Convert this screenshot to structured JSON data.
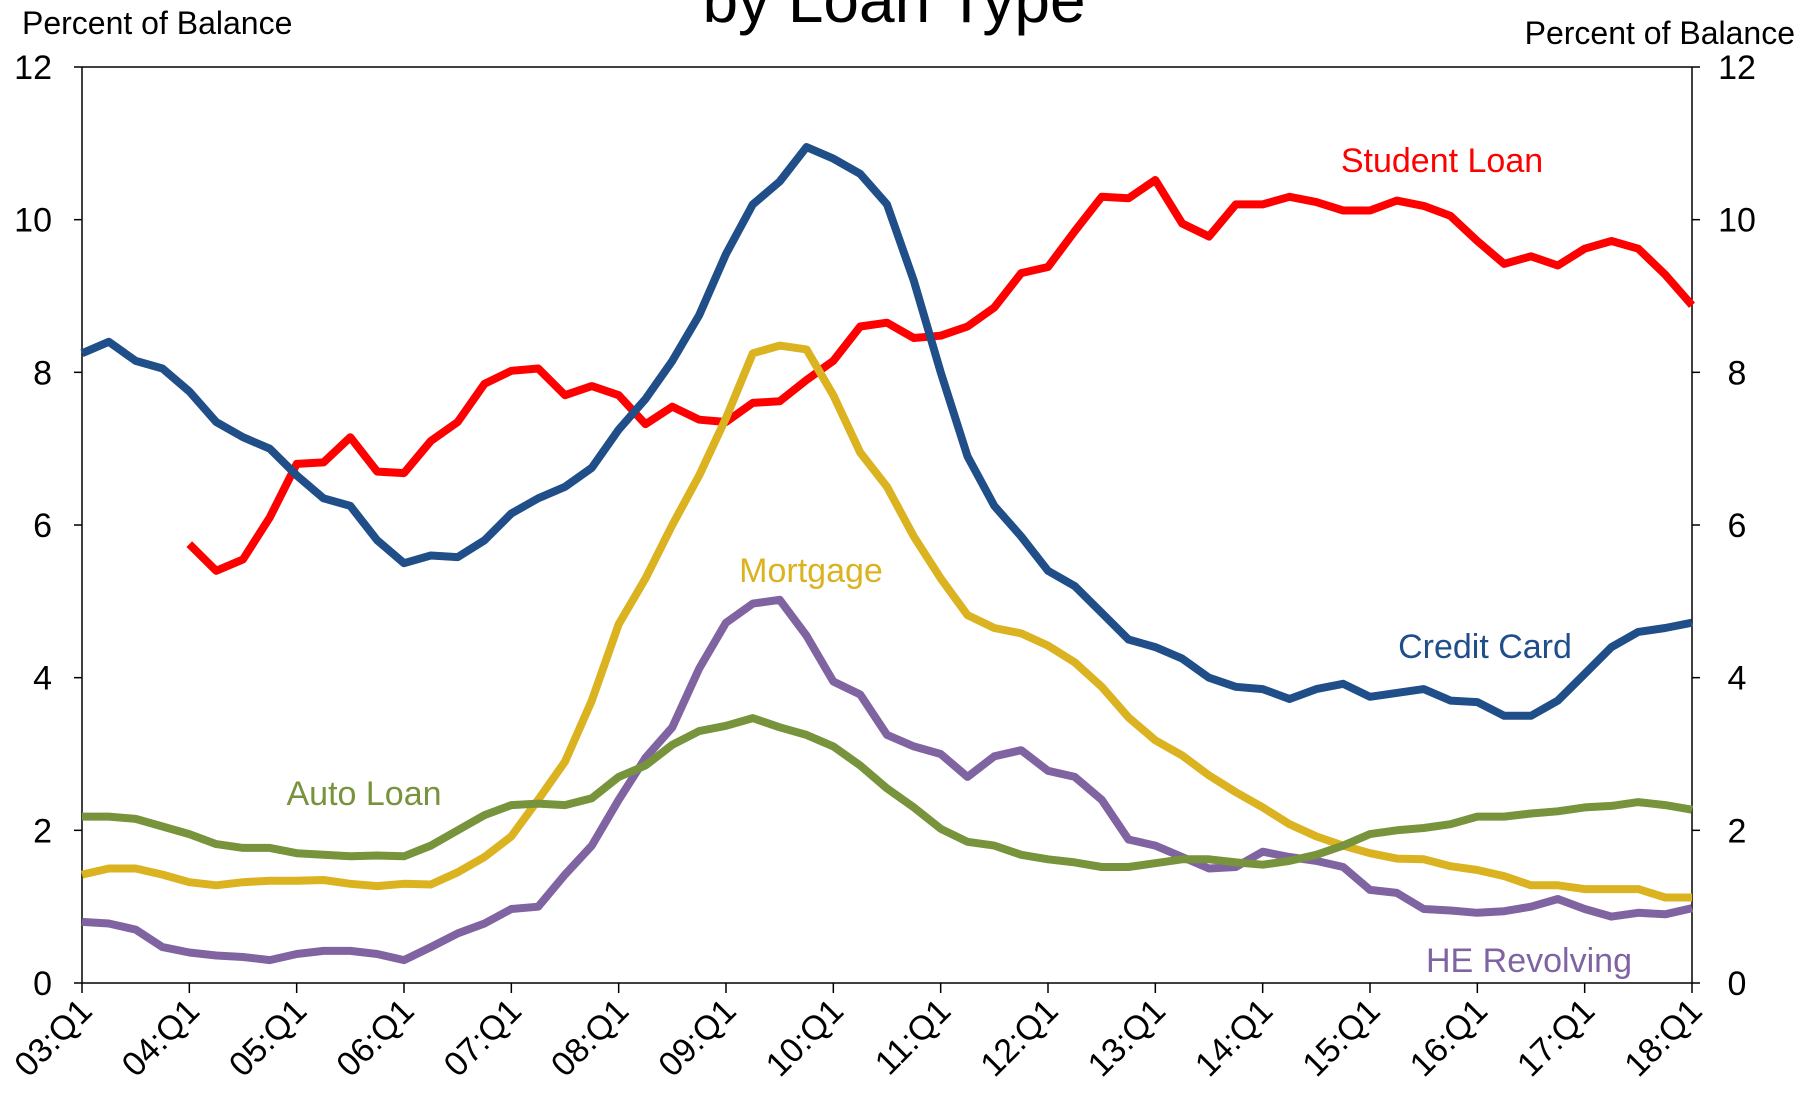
{
  "chart_data": {
    "type": "line",
    "title": "by Loan Type",
    "y_label": "Percent of Balance",
    "y2_label": "Percent of Balance",
    "categories": [
      "03:Q1",
      null,
      null,
      null,
      "04:Q1",
      null,
      null,
      null,
      "05:Q1",
      null,
      null,
      null,
      "06:Q1",
      null,
      null,
      null,
      "07:Q1",
      null,
      null,
      null,
      "08:Q1",
      null,
      null,
      null,
      "09:Q1",
      null,
      null,
      null,
      "10:Q1",
      null,
      null,
      null,
      "11:Q1",
      null,
      null,
      null,
      "12:Q1",
      null,
      null,
      null,
      "13:Q1",
      null,
      null,
      null,
      "14:Q1",
      null,
      null,
      null,
      "15:Q1",
      null,
      null,
      null,
      "16:Q1",
      null,
      null,
      null,
      "17:Q1",
      null,
      null,
      null,
      "18:Q1"
    ],
    "ylim": [
      0,
      12
    ],
    "yticks": [
      0,
      2,
      4,
      6,
      8,
      10,
      12
    ],
    "y2lim": [
      0,
      12
    ],
    "y2ticks": [
      0,
      2,
      4,
      6,
      8,
      10,
      12
    ],
    "grid": false,
    "series": [
      {
        "name": "Student Loan",
        "color": "#ff0000",
        "values": [
          null,
          null,
          null,
          null,
          5.75,
          5.4,
          5.55,
          6.1,
          6.8,
          6.82,
          7.15,
          6.7,
          6.68,
          7.1,
          7.35,
          7.85,
          8.02,
          8.05,
          7.7,
          7.82,
          7.7,
          7.32,
          7.55,
          7.38,
          7.35,
          7.6,
          7.62,
          7.9,
          8.15,
          8.6,
          8.65,
          8.45,
          8.48,
          8.6,
          8.85,
          9.3,
          9.38,
          9.85,
          10.3,
          10.28,
          10.52,
          9.95,
          9.78,
          10.2,
          10.2,
          10.3,
          10.23,
          10.12,
          10.12,
          10.25,
          10.18,
          10.05,
          9.72,
          9.42,
          9.52,
          9.4,
          9.62,
          9.72,
          9.62,
          9.28,
          8.88
        ]
      },
      {
        "name": "Credit Card",
        "color": "#1f4e89",
        "values": [
          8.25,
          8.4,
          8.15,
          8.05,
          7.75,
          7.35,
          7.15,
          7.0,
          6.65,
          6.35,
          6.25,
          5.8,
          5.5,
          5.6,
          5.58,
          5.8,
          6.15,
          6.35,
          6.5,
          6.75,
          7.25,
          7.65,
          8.15,
          8.75,
          9.55,
          10.2,
          10.5,
          10.95,
          10.8,
          10.6,
          10.2,
          9.2,
          8.0,
          6.9,
          6.25,
          5.85,
          5.4,
          5.2,
          4.85,
          4.5,
          4.4,
          4.25,
          4.0,
          3.88,
          3.85,
          3.72,
          3.85,
          3.92,
          3.75,
          3.8,
          3.85,
          3.7,
          3.68,
          3.5,
          3.5,
          3.7,
          4.05,
          4.4,
          4.6,
          4.65,
          4.72
        ]
      },
      {
        "name": "Mortgage",
        "color": "#dbb21f",
        "values": [
          1.42,
          1.5,
          1.5,
          1.42,
          1.32,
          1.28,
          1.32,
          1.34,
          1.34,
          1.35,
          1.3,
          1.27,
          1.3,
          1.29,
          1.45,
          1.65,
          1.92,
          2.4,
          2.9,
          3.7,
          4.7,
          5.3,
          6.0,
          6.65,
          7.4,
          8.25,
          8.35,
          8.3,
          7.7,
          6.95,
          6.5,
          5.85,
          5.3,
          4.82,
          4.65,
          4.58,
          4.42,
          4.2,
          3.88,
          3.48,
          3.18,
          2.98,
          2.72,
          2.5,
          2.3,
          2.08,
          1.92,
          1.8,
          1.7,
          1.63,
          1.62,
          1.53,
          1.48,
          1.4,
          1.28,
          1.28,
          1.23,
          1.23,
          1.23,
          1.12,
          1.12
        ]
      },
      {
        "name": "HE Revolving",
        "color": "#8064a2",
        "values": [
          0.8,
          0.78,
          0.7,
          0.47,
          0.4,
          0.36,
          0.34,
          0.3,
          0.38,
          0.42,
          0.42,
          0.38,
          0.3,
          0.47,
          0.65,
          0.78,
          0.97,
          1.0,
          1.42,
          1.8,
          2.4,
          2.95,
          3.35,
          4.12,
          4.72,
          4.97,
          5.02,
          4.55,
          3.95,
          3.78,
          3.25,
          3.1,
          3.0,
          2.7,
          2.97,
          3.05,
          2.78,
          2.7,
          2.4,
          1.88,
          1.8,
          1.65,
          1.5,
          1.52,
          1.72,
          1.65,
          1.6,
          1.52,
          1.22,
          1.18,
          0.97,
          0.95,
          0.92,
          0.94,
          1.0,
          1.1,
          0.97,
          0.87,
          0.92,
          0.9,
          0.98
        ]
      },
      {
        "name": "Auto Loan",
        "color": "#77933c",
        "values": [
          2.18,
          2.18,
          2.15,
          2.05,
          1.95,
          1.82,
          1.77,
          1.77,
          1.7,
          1.68,
          1.66,
          1.67,
          1.66,
          1.8,
          2.0,
          2.2,
          2.33,
          2.35,
          2.33,
          2.42,
          2.7,
          2.85,
          3.12,
          3.3,
          3.37,
          3.47,
          3.35,
          3.25,
          3.1,
          2.85,
          2.55,
          2.3,
          2.02,
          1.85,
          1.8,
          1.68,
          1.62,
          1.58,
          1.52,
          1.52,
          1.57,
          1.62,
          1.62,
          1.58,
          1.55,
          1.6,
          1.68,
          1.8,
          1.95,
          2.0,
          2.03,
          2.08,
          2.18,
          2.18,
          2.22,
          2.25,
          2.3,
          2.32,
          2.37,
          2.33,
          2.27
        ]
      }
    ]
  }
}
